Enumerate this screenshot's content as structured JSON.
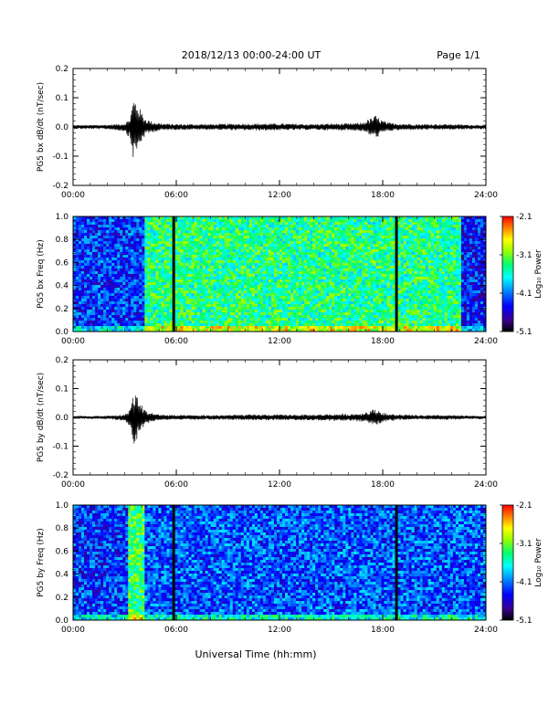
{
  "header": {
    "title": "2018/12/13  00:00-24:00 UT",
    "page": "Page 1/1"
  },
  "footer": {
    "xlabel": "Universal Time (hh:mm)"
  },
  "colorbar": {
    "ticks": [
      "-2.1",
      "-3.1",
      "-4.1",
      "-5.1"
    ],
    "label": "Log₁₀ Power",
    "range": [
      -5.1,
      -2.1
    ],
    "colors": [
      "#000000",
      "#3b0090",
      "#0000ff",
      "#0090ff",
      "#00ffff",
      "#00ff70",
      "#9bff00",
      "#ffff00",
      "#ff8000",
      "#ff0000"
    ]
  },
  "chart_data": [
    {
      "type": "line",
      "ylabel": "PG5 bx dB/dt (nT/sec)",
      "xlim": [
        0,
        24
      ],
      "ylim": [
        -0.2,
        0.2
      ],
      "yticks": [
        "0.2",
        "0.1",
        "0.0",
        "-0.1",
        "-0.2"
      ],
      "xticks": [
        "00:00",
        "06:00",
        "12:00",
        "18:00",
        "24:00"
      ],
      "series": [
        {
          "x": [
            0,
            1,
            2,
            3,
            3.3,
            3.5,
            3.7,
            3.9,
            4.2,
            4.6,
            5.2,
            6,
            8,
            10,
            12,
            14,
            15,
            16,
            16.8,
            17.3,
            17.6,
            17.9,
            18.3,
            19,
            20,
            22,
            23,
            24
          ],
          "y_max": [
            0.007,
            0.007,
            0.008,
            0.012,
            0.03,
            0.1,
            0.09,
            0.06,
            0.03,
            0.018,
            0.012,
            0.01,
            0.01,
            0.012,
            0.012,
            0.01,
            0.012,
            0.012,
            0.015,
            0.03,
            0.04,
            0.025,
            0.015,
            0.012,
            0.01,
            0.01,
            0.008,
            0.008
          ],
          "y_min": [
            -0.007,
            -0.007,
            -0.008,
            -0.015,
            -0.04,
            -0.11,
            -0.09,
            -0.06,
            -0.03,
            -0.018,
            -0.012,
            -0.01,
            -0.01,
            -0.012,
            -0.012,
            -0.01,
            -0.012,
            -0.012,
            -0.015,
            -0.03,
            -0.04,
            -0.025,
            -0.015,
            -0.012,
            -0.01,
            -0.01,
            -0.008,
            -0.008
          ]
        }
      ]
    },
    {
      "type": "heatmap",
      "ylabel": "PG5 bx Freq (Hz)",
      "xlim": [
        0,
        24
      ],
      "ylim": [
        0.0,
        1.0
      ],
      "yticks": [
        "1.0",
        "0.8",
        "0.6",
        "0.4",
        "0.2",
        "0.0"
      ],
      "xticks": [
        "00:00",
        "06:00",
        "12:00",
        "18:00",
        "24:00"
      ],
      "data_gaps_hours": [
        5.85,
        18.8
      ],
      "regions": [
        {
          "x": [
            0,
            4.1
          ],
          "log_power": -4.3
        },
        {
          "x": [
            4.1,
            22.5
          ],
          "log_power": -3.4
        },
        {
          "x": [
            22.5,
            24
          ],
          "log_power": -4.4
        }
      ]
    },
    {
      "type": "line",
      "ylabel": "PG5 by dB/dt (nT/sec)",
      "xlim": [
        0,
        24
      ],
      "ylim": [
        -0.2,
        0.2
      ],
      "yticks": [
        "0.2",
        "0.1",
        "0.0",
        "-0.1",
        "-0.2"
      ],
      "xticks": [
        "00:00",
        "06:00",
        "12:00",
        "18:00",
        "24:00"
      ],
      "series": [
        {
          "x": [
            0,
            1,
            2,
            3,
            3.3,
            3.5,
            3.7,
            3.9,
            4.2,
            4.6,
            5.2,
            6,
            8,
            10,
            12,
            14,
            15,
            16,
            16.8,
            17.3,
            17.6,
            17.9,
            18.3,
            19,
            20,
            22,
            23,
            24
          ],
          "y_max": [
            0.005,
            0.005,
            0.006,
            0.01,
            0.03,
            0.085,
            0.08,
            0.05,
            0.025,
            0.015,
            0.01,
            0.008,
            0.008,
            0.01,
            0.01,
            0.01,
            0.012,
            0.012,
            0.015,
            0.025,
            0.03,
            0.02,
            0.012,
            0.01,
            0.008,
            0.008,
            0.006,
            0.006
          ],
          "y_min": [
            -0.005,
            -0.005,
            -0.006,
            -0.012,
            -0.035,
            -0.11,
            -0.08,
            -0.05,
            -0.025,
            -0.015,
            -0.01,
            -0.008,
            -0.008,
            -0.01,
            -0.01,
            -0.01,
            -0.012,
            -0.012,
            -0.015,
            -0.025,
            -0.03,
            -0.02,
            -0.012,
            -0.01,
            -0.008,
            -0.008,
            -0.006,
            -0.006
          ]
        }
      ]
    },
    {
      "type": "heatmap",
      "ylabel": "PG5 by Freq (Hz)",
      "xlim": [
        0,
        24
      ],
      "ylim": [
        0.0,
        1.0
      ],
      "yticks": [
        "1.0",
        "0.8",
        "0.6",
        "0.4",
        "0.2",
        "0.0"
      ],
      "xticks": [
        "00:00",
        "06:00",
        "12:00",
        "18:00",
        "24:00"
      ],
      "data_gaps_hours": [
        5.85,
        18.8
      ],
      "regions": [
        {
          "x": [
            0,
            3.2
          ],
          "log_power": -4.3
        },
        {
          "x": [
            3.2,
            4.2
          ],
          "log_power": -3.3
        },
        {
          "x": [
            4.2,
            24
          ],
          "log_power": -4.2
        }
      ]
    }
  ]
}
